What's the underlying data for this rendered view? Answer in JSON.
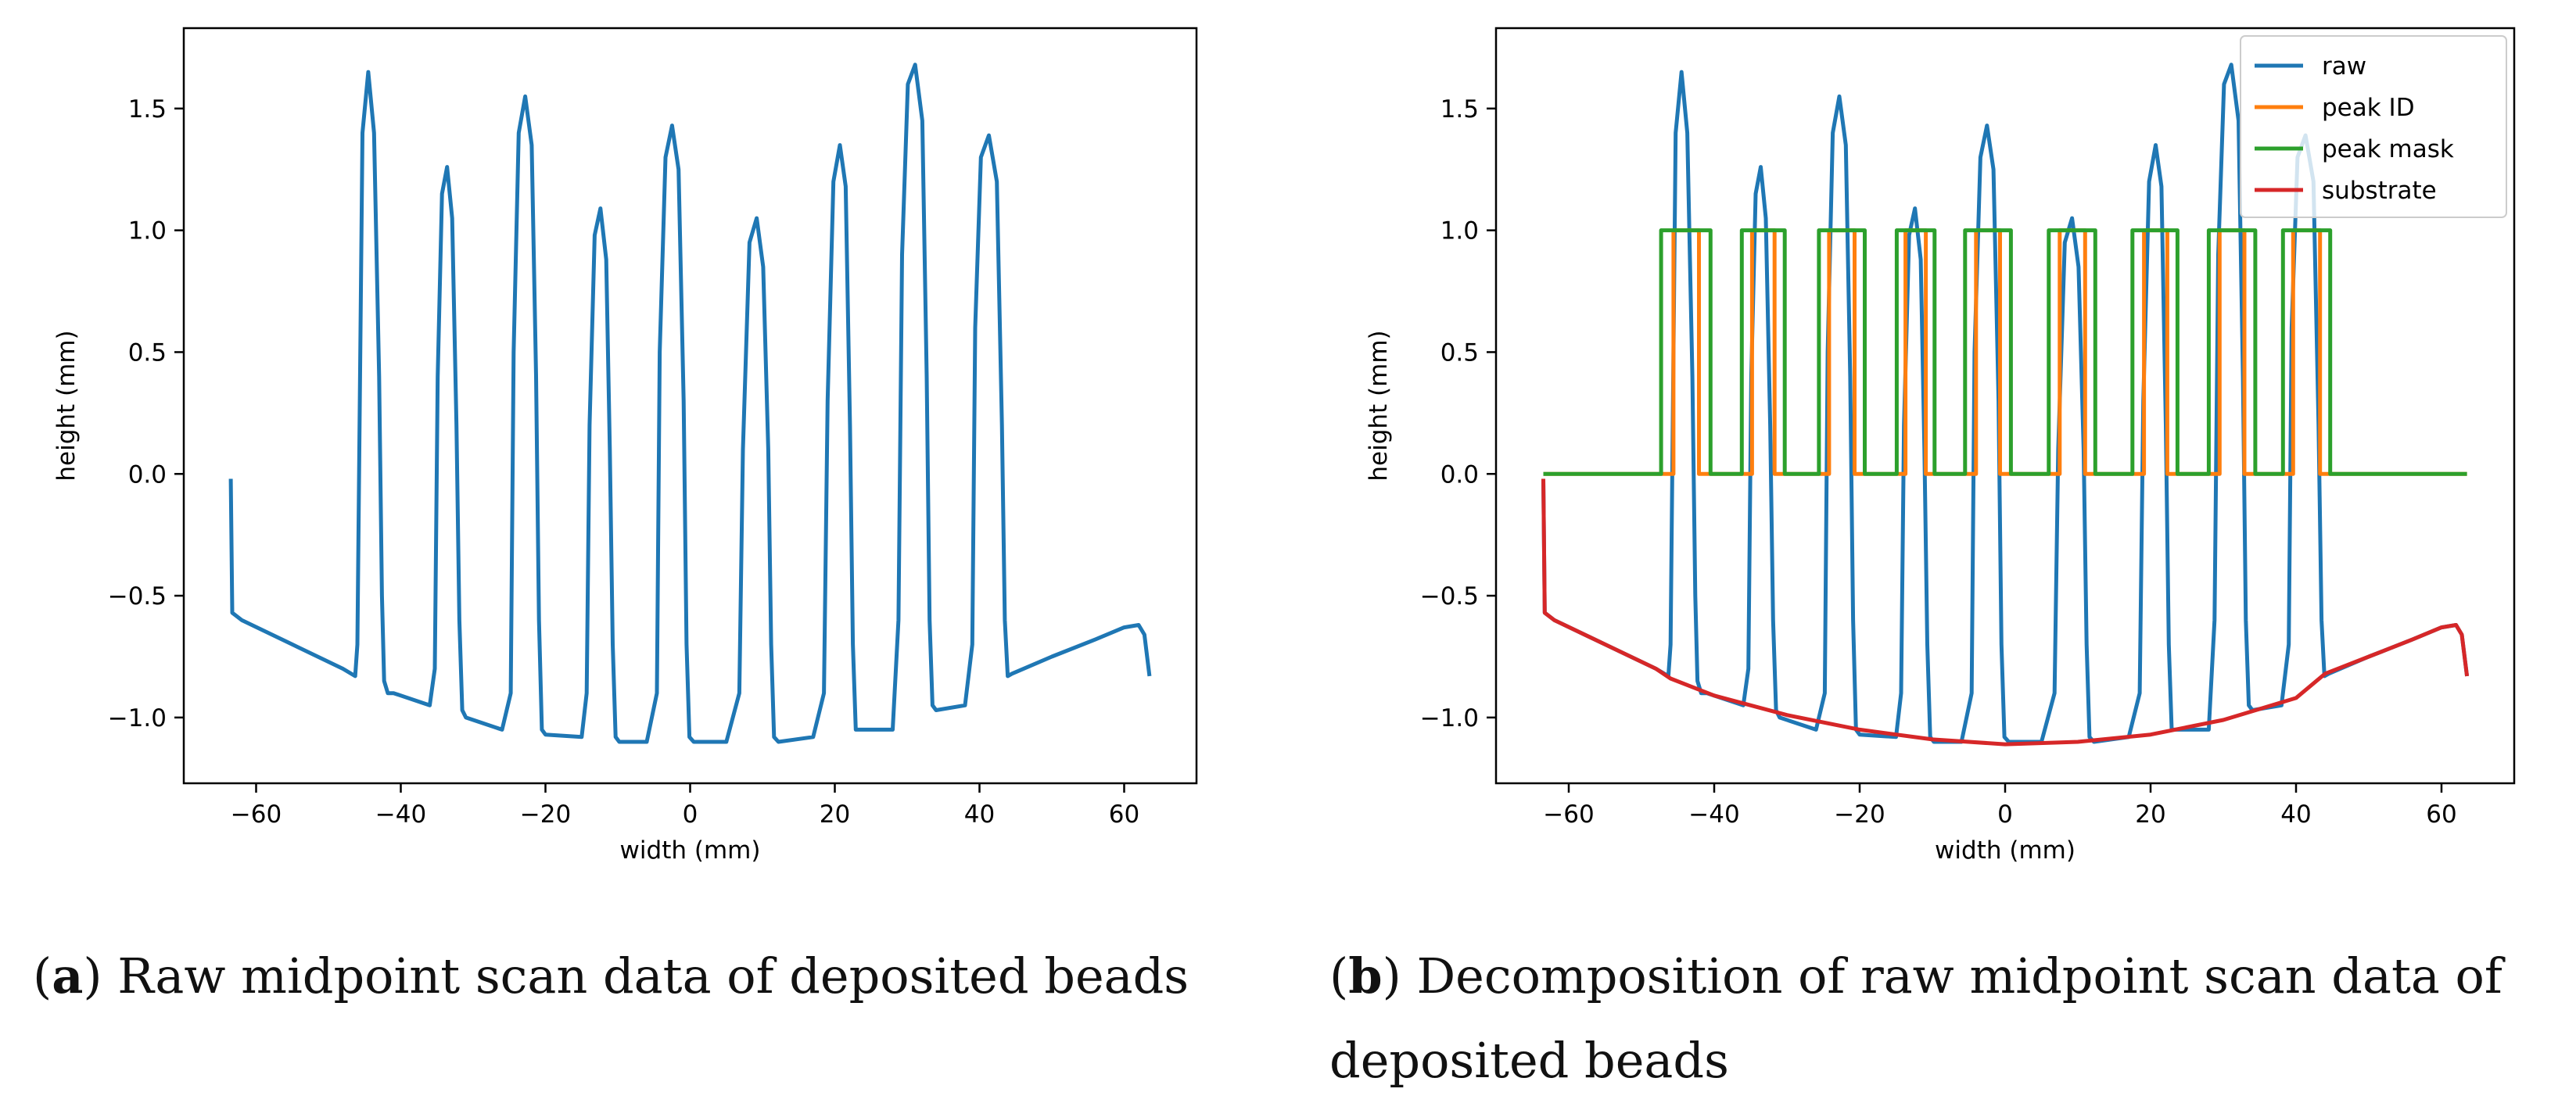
{
  "captions": {
    "a": {
      "letter": "a",
      "text": " Raw midpoint scan data of deposited beads"
    },
    "b": {
      "letter": "b",
      "text": " Decomposition of raw midpoint scan data of deposited beads"
    }
  },
  "chart_data": [
    {
      "id": "a",
      "type": "line",
      "title": "",
      "xlabel": "width (mm)",
      "ylabel": "height (mm)",
      "xlim": [
        -70,
        70
      ],
      "ylim": [
        -1.27,
        1.83
      ],
      "xticks": [
        -60,
        -40,
        -20,
        0,
        20,
        40,
        60
      ],
      "yticks": [
        -1.0,
        -0.5,
        0.0,
        0.5,
        1.0,
        1.5
      ],
      "xtick_labels": [
        "−60",
        "−40",
        "−20",
        "0",
        "20",
        "40",
        "60"
      ],
      "ytick_labels": [
        "−1.0",
        "−0.5",
        "0.0",
        "0.5",
        "1.0",
        "1.5"
      ],
      "grid": false,
      "series": [
        {
          "name": "raw",
          "color": "#1f77b4",
          "x": [
            -63.5,
            -63.3,
            -62,
            -55,
            -48,
            -46.3,
            -46,
            -45.3,
            -44.5,
            -43.7,
            -43,
            -42.6,
            -42.3,
            -41.8,
            -41,
            -36,
            -35.3,
            -34.9,
            -34.3,
            -33.6,
            -32.9,
            -32.3,
            -31.9,
            -31.5,
            -31,
            -26,
            -24.8,
            -24.4,
            -23.7,
            -22.8,
            -21.9,
            -21.3,
            -20.9,
            -20.5,
            -20,
            -15,
            -14.3,
            -13.9,
            -13.2,
            -12.4,
            -11.6,
            -11.1,
            -10.7,
            -10.3,
            -9.8,
            -6,
            -4.6,
            -4.2,
            -3.4,
            -2.5,
            -1.6,
            -0.9,
            -0.5,
            -0.1,
            0.5,
            5,
            6.8,
            7.3,
            8.2,
            9.2,
            10.1,
            10.8,
            11.2,
            11.6,
            12.2,
            17,
            18.5,
            19,
            19.8,
            20.7,
            21.5,
            22.1,
            22.5,
            22.9,
            23.5,
            28,
            28.8,
            29.3,
            30.1,
            31.1,
            32.1,
            32.7,
            33.1,
            33.5,
            34,
            38,
            39,
            39.4,
            40.2,
            41.3,
            42.4,
            43.1,
            43.5,
            43.9,
            44.5,
            50,
            56,
            60,
            62,
            62.8,
            63.5
          ],
          "y": [
            -0.02,
            -0.57,
            -0.6,
            -0.7,
            -0.8,
            -0.83,
            -0.7,
            1.4,
            1.65,
            1.4,
            0.4,
            -0.5,
            -0.85,
            -0.9,
            -0.9,
            -0.95,
            -0.8,
            0.4,
            1.15,
            1.26,
            1.05,
            0.2,
            -0.6,
            -0.97,
            -1.0,
            -1.05,
            -0.9,
            0.5,
            1.4,
            1.55,
            1.35,
            0.4,
            -0.6,
            -1.05,
            -1.07,
            -1.08,
            -0.9,
            0.2,
            0.98,
            1.09,
            0.88,
            0.1,
            -0.7,
            -1.08,
            -1.1,
            -1.1,
            -0.9,
            0.5,
            1.3,
            1.43,
            1.25,
            0.3,
            -0.7,
            -1.08,
            -1.1,
            -1.1,
            -0.9,
            0.1,
            0.95,
            1.05,
            0.85,
            0.1,
            -0.7,
            -1.08,
            -1.1,
            -1.08,
            -0.9,
            0.3,
            1.2,
            1.35,
            1.18,
            0.2,
            -0.7,
            -1.05,
            -1.05,
            -1.05,
            -0.6,
            0.9,
            1.6,
            1.68,
            1.45,
            0.4,
            -0.6,
            -0.95,
            -0.97,
            -0.95,
            -0.7,
            0.6,
            1.3,
            1.39,
            1.2,
            0.2,
            -0.6,
            -0.83,
            -0.82,
            -0.75,
            -0.68,
            -0.63,
            -0.62,
            -0.66,
            -0.83
          ]
        }
      ]
    },
    {
      "id": "b",
      "type": "line",
      "title": "",
      "xlabel": "width (mm)",
      "ylabel": "height (mm)",
      "xlim": [
        -70,
        70
      ],
      "ylim": [
        -1.27,
        1.83
      ],
      "xticks": [
        -60,
        -40,
        -20,
        0,
        20,
        40,
        60
      ],
      "yticks": [
        -1.0,
        -0.5,
        0.0,
        0.5,
        1.0,
        1.5
      ],
      "xtick_labels": [
        "−60",
        "−40",
        "−20",
        "0",
        "20",
        "40",
        "60"
      ],
      "ytick_labels": [
        "−1.0",
        "−0.5",
        "0.0",
        "0.5",
        "1.0",
        "1.5"
      ],
      "grid": false,
      "legend": {
        "position": "top-right",
        "entries": [
          "raw",
          "peak ID",
          "peak mask",
          "substrate"
        ]
      },
      "series": [
        {
          "name": "raw",
          "color": "#1f77b4",
          "x": [
            -63.5,
            -63.3,
            -62,
            -55,
            -48,
            -46.3,
            -46,
            -45.3,
            -44.5,
            -43.7,
            -43,
            -42.6,
            -42.3,
            -41.8,
            -41,
            -36,
            -35.3,
            -34.9,
            -34.3,
            -33.6,
            -32.9,
            -32.3,
            -31.9,
            -31.5,
            -31,
            -26,
            -24.8,
            -24.4,
            -23.7,
            -22.8,
            -21.9,
            -21.3,
            -20.9,
            -20.5,
            -20,
            -15,
            -14.3,
            -13.9,
            -13.2,
            -12.4,
            -11.6,
            -11.1,
            -10.7,
            -10.3,
            -9.8,
            -6,
            -4.6,
            -4.2,
            -3.4,
            -2.5,
            -1.6,
            -0.9,
            -0.5,
            -0.1,
            0.5,
            5,
            6.8,
            7.3,
            8.2,
            9.2,
            10.1,
            10.8,
            11.2,
            11.6,
            12.2,
            17,
            18.5,
            19,
            19.8,
            20.7,
            21.5,
            22.1,
            22.5,
            22.9,
            23.5,
            28,
            28.8,
            29.3,
            30.1,
            31.1,
            32.1,
            32.7,
            33.1,
            33.5,
            34,
            38,
            39,
            39.4,
            40.2,
            41.3,
            42.4,
            43.1,
            43.5,
            43.9,
            44.5,
            50,
            56,
            60,
            62,
            62.8,
            63.5
          ],
          "y": [
            -0.02,
            -0.57,
            -0.6,
            -0.7,
            -0.8,
            -0.83,
            -0.7,
            1.4,
            1.65,
            1.4,
            0.4,
            -0.5,
            -0.85,
            -0.9,
            -0.9,
            -0.95,
            -0.8,
            0.4,
            1.15,
            1.26,
            1.05,
            0.2,
            -0.6,
            -0.97,
            -1.0,
            -1.05,
            -0.9,
            0.5,
            1.4,
            1.55,
            1.35,
            0.4,
            -0.6,
            -1.05,
            -1.07,
            -1.08,
            -0.9,
            0.2,
            0.98,
            1.09,
            0.88,
            0.1,
            -0.7,
            -1.08,
            -1.1,
            -1.1,
            -0.9,
            0.5,
            1.3,
            1.43,
            1.25,
            0.3,
            -0.7,
            -1.08,
            -1.1,
            -1.1,
            -0.9,
            0.1,
            0.95,
            1.05,
            0.85,
            0.1,
            -0.7,
            -1.08,
            -1.1,
            -1.08,
            -0.9,
            0.3,
            1.2,
            1.35,
            1.18,
            0.2,
            -0.7,
            -1.05,
            -1.05,
            -1.05,
            -0.6,
            0.9,
            1.6,
            1.68,
            1.45,
            0.4,
            -0.6,
            -0.95,
            -0.97,
            -0.95,
            -0.7,
            0.6,
            1.3,
            1.39,
            1.2,
            0.2,
            -0.6,
            -0.83,
            -0.82,
            -0.75,
            -0.68,
            -0.63,
            -0.62,
            -0.66,
            -0.83
          ]
        },
        {
          "name": "peak ID",
          "color": "#ff7f0e",
          "pulses": [
            [
              -45.6,
              -42.1
            ],
            [
              -34.8,
              -31.7
            ],
            [
              -24.2,
              -20.7
            ],
            [
              -13.7,
              -10.9
            ],
            [
              -4.0,
              -0.7
            ],
            [
              7.5,
              11.0
            ],
            [
              19.1,
              22.3
            ],
            [
              29.5,
              32.9
            ],
            [
              39.6,
              43.3
            ]
          ],
          "low": 0.0,
          "high": 1.0,
          "xrange": [
            -63.5,
            63.5
          ]
        },
        {
          "name": "peak mask",
          "color": "#2ca02c",
          "pulses": [
            [
              -47.3,
              -40.5
            ],
            [
              -36.2,
              -30.3
            ],
            [
              -25.6,
              -19.3
            ],
            [
              -14.9,
              -9.7
            ],
            [
              -5.5,
              0.8
            ],
            [
              6.0,
              12.4
            ],
            [
              17.5,
              23.7
            ],
            [
              28.0,
              34.4
            ],
            [
              38.2,
              44.7
            ]
          ],
          "low": 0.0,
          "high": 1.0,
          "xrange": [
            -63.5,
            63.5
          ]
        },
        {
          "name": "substrate",
          "color": "#d62728",
          "x": [
            -63.5,
            -63.3,
            -62,
            -55,
            -48,
            -46,
            -40,
            -30,
            -20,
            -10,
            0,
            10,
            20,
            30,
            40,
            44,
            50,
            56,
            60,
            62,
            62.8,
            63.5
          ],
          "y": [
            -0.02,
            -0.57,
            -0.6,
            -0.7,
            -0.8,
            -0.84,
            -0.91,
            -0.99,
            -1.05,
            -1.09,
            -1.11,
            -1.1,
            -1.07,
            -1.01,
            -0.92,
            -0.82,
            -0.75,
            -0.68,
            -0.63,
            -0.62,
            -0.66,
            -0.83
          ]
        }
      ]
    }
  ]
}
